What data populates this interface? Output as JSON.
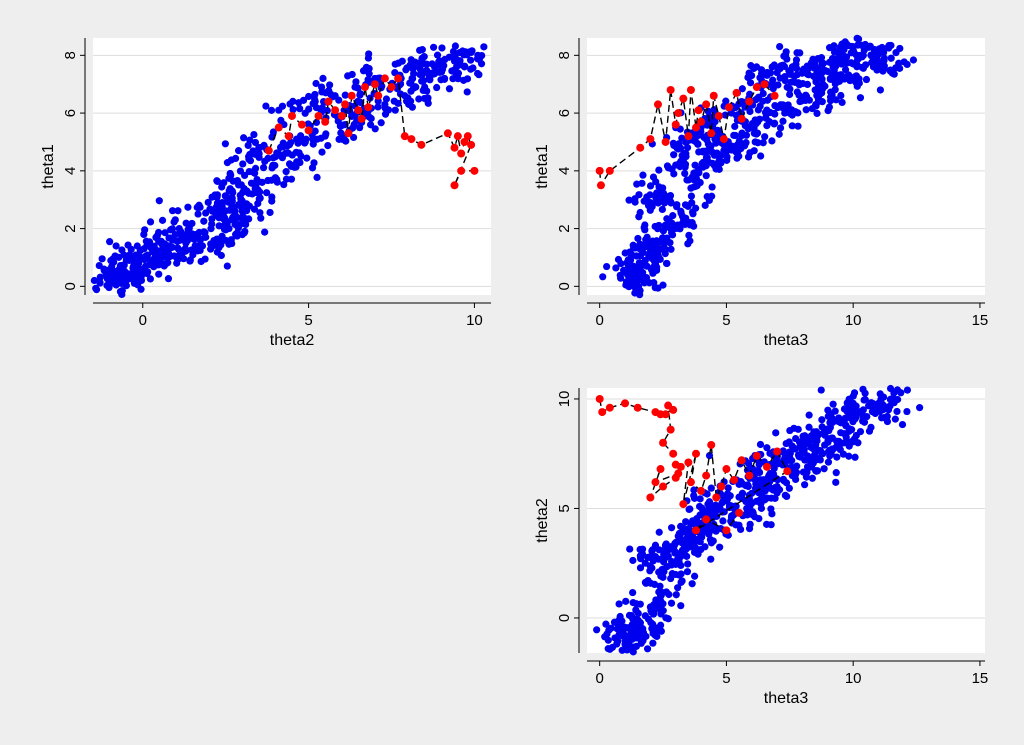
{
  "colors": {
    "background": "#eeeeee",
    "plot_region": "#ffffff",
    "gridline": "#dddddd",
    "axis": "#000000",
    "posterior_draws": "#0000ee",
    "chain_points": "#ff0000",
    "chain_path": "#000000"
  },
  "chart_data": [
    {
      "id": "theta1-vs-theta2",
      "type": "scatter",
      "xlabel": "theta2",
      "ylabel": "theta1",
      "xlim": [
        -1.5,
        10.5
      ],
      "ylim": [
        -0.3,
        8.6
      ],
      "xticks": [
        0,
        5,
        10
      ],
      "yticks": [
        0,
        2,
        4,
        6,
        8
      ],
      "grid": true,
      "cloud": {
        "x": [
          -1.1,
          -0.8,
          -0.7,
          -0.5,
          -0.4,
          -0.1,
          -0.1,
          0.3,
          0.5,
          0.8,
          0.9,
          1.1,
          1.3,
          1.8,
          1.9,
          2.1,
          2.3,
          2.4,
          2.6,
          2.7,
          2.8,
          3.0,
          3.2,
          3.3,
          3.5,
          3.6,
          3.9,
          4.1,
          4.3,
          4.6,
          4.9,
          5.2,
          5.5,
          5.8,
          6.1,
          6.4,
          6.7,
          7.0,
          7.3,
          7.6,
          7.9,
          8.2,
          8.5,
          8.8,
          9.1,
          9.4,
          9.7,
          9.9
        ],
        "y": [
          0.4,
          0.3,
          0.2,
          0.3,
          0.9,
          0.6,
          0.9,
          1.2,
          1.2,
          1.1,
          1.6,
          2.0,
          1.5,
          1.4,
          1.7,
          2.6,
          2.4,
          2.9,
          2.0,
          3.3,
          1.8,
          2.6,
          4.4,
          3.2,
          4.8,
          3.6,
          4.1,
          6.1,
          4.6,
          4.2,
          5.0,
          6.4,
          5.2,
          6.6,
          5.6,
          6.9,
          5.9,
          7.2,
          6.3,
          7.4,
          6.6,
          7.6,
          6.9,
          7.6,
          7.2,
          7.8,
          7.6,
          8.1
        ],
        "spread": 0.45
      },
      "chain": {
        "x": [
          3.8,
          4.1,
          4.4,
          4.5,
          4.8,
          5.0,
          5.3,
          5.5,
          5.6,
          5.8,
          6.0,
          6.1,
          6.2,
          6.3,
          6.5,
          6.6,
          6.7,
          6.8,
          7.0,
          7.1,
          7.3,
          7.5,
          7.7,
          7.9,
          8.1,
          8.4,
          9.2,
          9.4,
          9.5,
          9.6,
          9.7,
          9.8,
          9.9,
          9.4,
          9.6,
          10.0
        ],
        "y": [
          4.7,
          5.5,
          5.2,
          5.9,
          5.6,
          5.4,
          5.9,
          5.7,
          6.4,
          6.1,
          5.9,
          6.3,
          5.3,
          6.6,
          6.1,
          5.8,
          6.9,
          6.2,
          7.0,
          6.6,
          7.2,
          6.9,
          7.2,
          5.2,
          5.1,
          4.9,
          5.3,
          4.8,
          5.2,
          4.6,
          5.0,
          5.2,
          4.9,
          3.5,
          4.0,
          4.0
        ]
      }
    },
    {
      "id": "theta1-vs-theta3",
      "type": "scatter",
      "xlabel": "theta3",
      "ylabel": "theta1",
      "xlim": [
        -0.5,
        15.2
      ],
      "ylim": [
        -0.3,
        8.6
      ],
      "xticks": [
        0,
        5,
        10,
        15
      ],
      "yticks": [
        0,
        2,
        4,
        6,
        8
      ],
      "grid": true,
      "cloud": {
        "x": [
          1.1,
          1.3,
          1.5,
          1.6,
          1.8,
          2.0,
          2.0,
          2.2,
          2.4,
          2.6,
          2.8,
          3.0,
          3.2,
          3.4,
          3.6,
          3.8,
          4.0,
          4.3,
          4.6,
          4.9,
          5.2,
          5.5,
          5.8,
          6.1,
          6.4,
          6.7,
          7.0,
          7.3,
          7.6,
          7.9,
          8.2,
          8.5,
          8.8,
          9.1,
          9.4,
          9.7,
          10.0,
          10.4,
          10.8,
          11.2,
          11.5
        ],
        "y": [
          0.4,
          0.3,
          0.2,
          0.6,
          0.9,
          1.2,
          2.9,
          1.4,
          3.2,
          1.6,
          2.0,
          4.2,
          2.6,
          4.6,
          3.4,
          5.0,
          5.5,
          4.3,
          5.3,
          4.7,
          6.0,
          4.9,
          6.3,
          5.3,
          7.1,
          5.7,
          7.4,
          6.0,
          7.6,
          6.4,
          7.5,
          6.8,
          7.0,
          7.2,
          7.9,
          7.5,
          8.3,
          8.0,
          7.6,
          8.1,
          7.9
        ],
        "spread": 0.5
      },
      "chain": {
        "x": [
          0.0,
          0.05,
          0.4,
          1.6,
          2.0,
          2.3,
          2.6,
          2.8,
          3.0,
          3.1,
          3.3,
          3.5,
          3.6,
          3.8,
          3.9,
          4.0,
          4.2,
          4.4,
          4.5,
          4.7,
          4.9,
          5.1,
          5.4,
          5.6,
          5.9,
          6.2,
          6.5,
          6.9
        ],
        "y": [
          4.0,
          3.5,
          4.0,
          4.8,
          5.1,
          6.3,
          5.0,
          6.8,
          5.6,
          6.0,
          6.5,
          5.2,
          6.8,
          5.5,
          6.1,
          5.7,
          6.3,
          5.3,
          6.6,
          5.9,
          5.1,
          6.2,
          6.7,
          5.8,
          6.4,
          6.9,
          7.0,
          6.6
        ]
      }
    },
    {
      "id": "theta2-vs-theta3",
      "type": "scatter",
      "xlabel": "theta3",
      "ylabel": "theta2",
      "xlim": [
        -0.5,
        15.2
      ],
      "ylim": [
        -1.6,
        10.5
      ],
      "xticks": [
        0,
        5,
        10,
        15
      ],
      "yticks": [
        0,
        5,
        10
      ],
      "grid": true,
      "cloud": {
        "x": [
          1.0,
          1.2,
          1.4,
          1.6,
          1.8,
          1.8,
          2.0,
          2.2,
          2.4,
          2.6,
          2.8,
          3.0,
          3.2,
          3.4,
          3.6,
          3.8,
          4.0,
          4.3,
          4.6,
          4.9,
          5.2,
          5.5,
          5.8,
          6.1,
          6.4,
          6.7,
          7.0,
          7.3,
          7.6,
          7.9,
          8.2,
          8.5,
          8.8,
          9.1,
          9.4,
          9.7,
          10.0,
          10.4,
          10.8,
          11.2,
          11.5
        ],
        "y": [
          -1.2,
          -0.9,
          -0.6,
          -0.4,
          0.1,
          2.5,
          0.5,
          2.8,
          1.0,
          3.2,
          1.8,
          3.0,
          2.4,
          3.6,
          3.3,
          4.3,
          3.8,
          5.0,
          4.1,
          5.5,
          4.6,
          6.1,
          5.0,
          6.4,
          5.6,
          7.0,
          6.0,
          7.3,
          6.5,
          7.8,
          6.9,
          8.2,
          7.5,
          8.7,
          8.0,
          9.1,
          9.8,
          9.5,
          9.4,
          9.7,
          10.0
        ],
        "spread": 0.55
      },
      "chain": {
        "x": [
          0.0,
          0.1,
          0.4,
          1.0,
          1.5,
          2.2,
          2.6,
          2.9,
          2.4,
          2.7,
          2.8,
          2.5,
          2.9,
          3.0,
          3.1,
          2.2,
          2.4,
          2.0,
          2.5,
          3.0,
          3.2,
          3.5,
          3.3,
          3.8,
          3.6,
          4.0,
          4.2,
          4.4,
          4.6,
          4.8,
          5.0,
          5.3,
          5.6,
          5.9,
          6.2,
          6.6,
          7.0,
          7.4,
          3.8,
          4.2,
          5.0,
          5.5
        ],
        "y": [
          10.0,
          9.4,
          9.6,
          9.8,
          9.6,
          9.4,
          9.3,
          9.5,
          9.3,
          9.7,
          8.6,
          8.0,
          7.5,
          7.0,
          6.6,
          6.2,
          6.8,
          5.5,
          6.0,
          6.4,
          6.9,
          7.1,
          5.2,
          7.5,
          6.2,
          5.8,
          6.5,
          7.9,
          5.5,
          6.0,
          6.8,
          6.3,
          7.2,
          6.5,
          7.4,
          6.9,
          7.6,
          6.7,
          4.0,
          4.5,
          4.0,
          4.8
        ]
      }
    }
  ]
}
